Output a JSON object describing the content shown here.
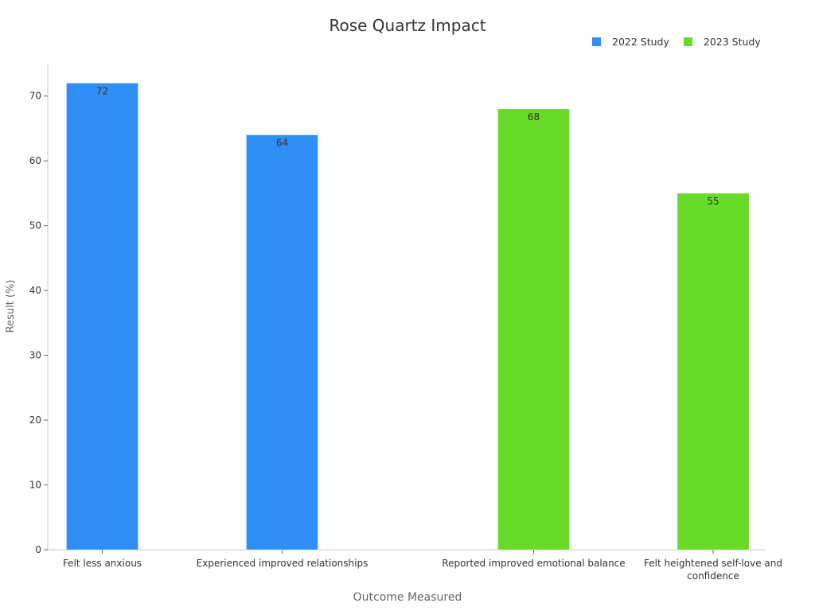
{
  "chart_data": {
    "type": "bar",
    "title": "Rose Quartz Impact",
    "xlabel": "Outcome Measured",
    "ylabel": "Result (%)",
    "ylim": [
      0,
      75
    ],
    "yticks": [
      0,
      10,
      20,
      30,
      40,
      50,
      60,
      70
    ],
    "grid": false,
    "legend_position": "top-right",
    "categories": [
      "Felt less anxious",
      "Experienced improved relationships",
      "Reported improved emotional balance",
      "Felt heightened self-love and confidence"
    ],
    "series": [
      {
        "name": "2022 Study",
        "color": "#2f8ff7",
        "values": [
          72,
          64,
          null,
          null
        ]
      },
      {
        "name": "2023 Study",
        "color": "#68db28",
        "values": [
          null,
          null,
          68,
          55
        ]
      }
    ]
  }
}
